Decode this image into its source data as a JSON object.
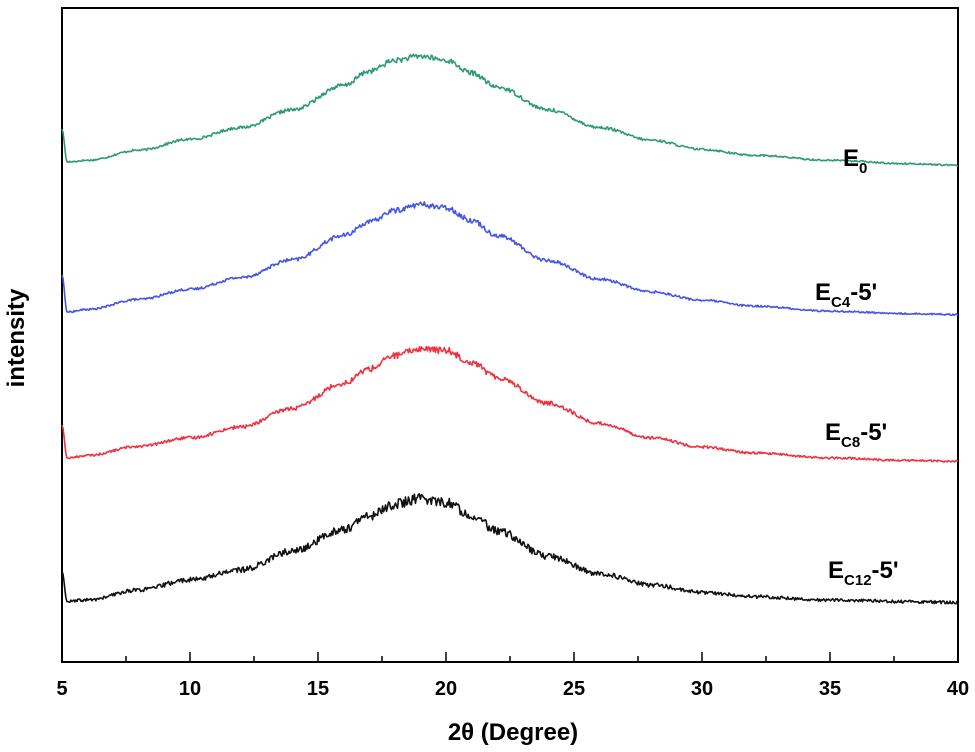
{
  "chart_data": {
    "type": "line",
    "xlabel": "2θ (Degree)",
    "ylabel": "intensity",
    "xlim": [
      5,
      40
    ],
    "xticks": [
      5,
      10,
      15,
      20,
      25,
      30,
      35,
      40
    ],
    "yticks_shown": false,
    "grid": false,
    "legend": "inline labels at right of each curve",
    "series": [
      {
        "name": "E0",
        "label_main": "E",
        "label_sub": "0",
        "label_suffix": "",
        "color": "#2e9a78",
        "x": [
          5.0,
          5.2,
          6,
          8,
          10,
          12,
          14,
          16,
          17,
          18,
          19,
          20,
          21,
          22,
          24,
          26,
          28,
          30,
          32,
          35,
          38,
          40
        ],
        "y": [
          0.45,
          0.06,
          0.08,
          0.2,
          0.33,
          0.47,
          0.68,
          0.97,
          1.14,
          1.27,
          1.32,
          1.27,
          1.12,
          0.95,
          0.68,
          0.47,
          0.32,
          0.21,
          0.14,
          0.08,
          0.04,
          0.02
        ],
        "noise": 0.018
      },
      {
        "name": "EC4-5'",
        "label_main": "E",
        "label_sub": "C4",
        "label_suffix": "-5'",
        "color": "#4455e8",
        "x": [
          5.0,
          5.2,
          6,
          8,
          10,
          12,
          14,
          16,
          17,
          18,
          19,
          20,
          21,
          22,
          24,
          26,
          28,
          30,
          32,
          35,
          38,
          40
        ],
        "y": [
          0.5,
          0.06,
          0.09,
          0.21,
          0.33,
          0.47,
          0.68,
          0.97,
          1.13,
          1.27,
          1.34,
          1.3,
          1.15,
          0.97,
          0.67,
          0.45,
          0.3,
          0.2,
          0.13,
          0.07,
          0.04,
          0.03
        ],
        "noise": 0.018
      },
      {
        "name": "EC8-5'",
        "label_main": "E",
        "label_sub": "C8",
        "label_suffix": "-5'",
        "color": "#ee3340",
        "x": [
          5.0,
          5.2,
          6,
          8,
          10,
          12,
          14,
          16,
          17,
          18,
          19,
          20,
          21,
          22,
          24,
          26,
          28,
          30,
          32,
          35,
          38,
          40
        ],
        "y": [
          0.45,
          0.06,
          0.09,
          0.2,
          0.3,
          0.43,
          0.65,
          0.95,
          1.12,
          1.28,
          1.36,
          1.34,
          1.2,
          1.02,
          0.71,
          0.47,
          0.3,
          0.19,
          0.12,
          0.06,
          0.03,
          0.02
        ],
        "noise": 0.022
      },
      {
        "name": "EC12-5'",
        "label_main": "E",
        "label_sub": "C12",
        "label_suffix": "-5'",
        "color": "#111111",
        "x": [
          5.0,
          5.2,
          6,
          8,
          10,
          12,
          14,
          16,
          17,
          18,
          19,
          20,
          21,
          22,
          24,
          26,
          28,
          30,
          32,
          35,
          38,
          40
        ],
        "y": [
          0.4,
          0.04,
          0.06,
          0.18,
          0.3,
          0.42,
          0.64,
          0.9,
          1.06,
          1.2,
          1.27,
          1.22,
          1.07,
          0.88,
          0.58,
          0.37,
          0.24,
          0.15,
          0.1,
          0.06,
          0.04,
          0.03
        ],
        "noise": 0.035
      }
    ]
  }
}
